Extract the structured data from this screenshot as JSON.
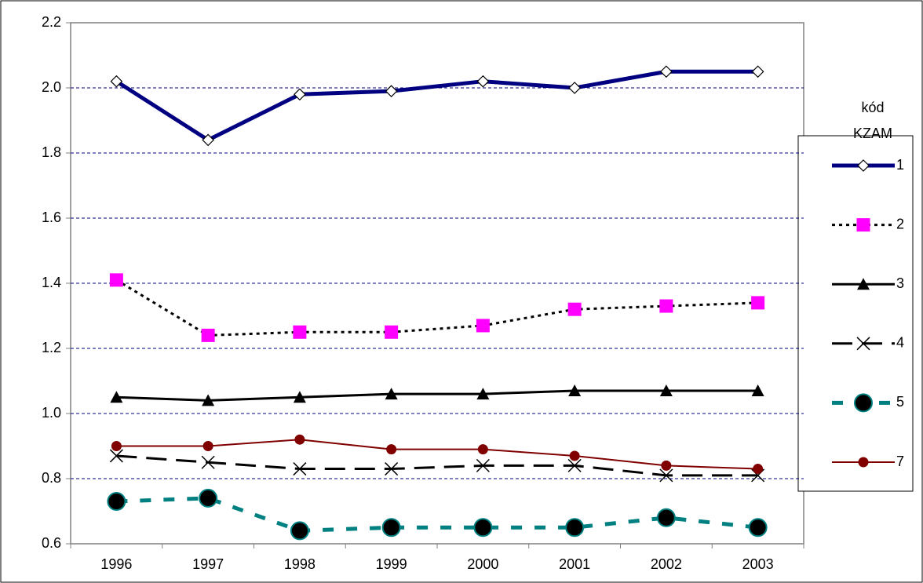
{
  "chart_data": {
    "type": "line",
    "categories": [
      "1996",
      "1997",
      "1998",
      "1999",
      "2000",
      "2001",
      "2002",
      "2003"
    ],
    "legend_title": [
      "kód",
      "KZAM"
    ],
    "legend": "right",
    "grid": true,
    "ylim": [
      0.6,
      2.2
    ],
    "yticks": [
      {
        "value": 0.6,
        "label": "0.6"
      },
      {
        "value": 0.8,
        "label": "0.8"
      },
      {
        "value": 1.0,
        "label": "1.0"
      },
      {
        "value": 1.2,
        "label": "1.2"
      },
      {
        "value": 1.4,
        "label": "1.4"
      },
      {
        "value": 1.6,
        "label": "1.6"
      },
      {
        "value": 1.8,
        "label": "1.8"
      },
      {
        "value": 2.0,
        "label": "2.0"
      },
      {
        "value": 2.2,
        "label": "2.2"
      }
    ],
    "series": [
      {
        "name": "1",
        "color": "#000080",
        "marker": "diamond",
        "marker_fill": "#ffffff",
        "line_style": "solid",
        "line_width": 5,
        "values": [
          2.02,
          1.84,
          1.98,
          1.99,
          2.02,
          2.0,
          2.05,
          2.05
        ]
      },
      {
        "name": "2",
        "color": "#000000",
        "marker": "square",
        "marker_fill": "#ff00ff",
        "line_style": "dotted",
        "line_width": 3,
        "values": [
          1.41,
          1.24,
          1.25,
          1.25,
          1.27,
          1.32,
          1.33,
          1.34
        ]
      },
      {
        "name": "3",
        "color": "#000000",
        "marker": "triangle",
        "marker_fill": "#000000",
        "line_style": "solid",
        "line_width": 3,
        "values": [
          1.05,
          1.04,
          1.05,
          1.06,
          1.06,
          1.07,
          1.07,
          1.07
        ]
      },
      {
        "name": "4",
        "color": "#000000",
        "marker": "x",
        "marker_fill": "#000000",
        "line_style": "dashed",
        "line_width": 3,
        "values": [
          0.87,
          0.85,
          0.83,
          0.83,
          0.84,
          0.84,
          0.81,
          0.81
        ]
      },
      {
        "name": "5",
        "color": "#008080",
        "marker": "circle",
        "marker_fill": "#000000",
        "line_style": "dashed",
        "line_width": 5,
        "values": [
          0.73,
          0.74,
          0.64,
          0.65,
          0.65,
          0.65,
          0.68,
          0.65
        ]
      },
      {
        "name": "7",
        "color": "#800000",
        "marker": "circle",
        "marker_fill": "#800000",
        "line_style": "solid",
        "line_width": 2,
        "values": [
          0.9,
          0.9,
          0.92,
          0.89,
          0.89,
          0.87,
          0.84,
          0.83
        ]
      }
    ]
  }
}
